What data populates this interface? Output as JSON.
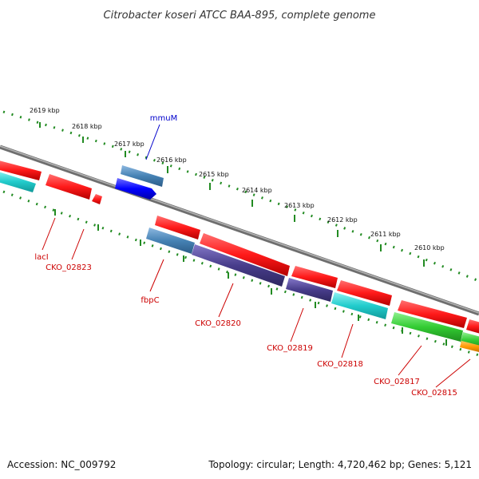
{
  "title": "Citrobacter koseri ATCC BAA-895, complete genome",
  "footer": {
    "accession": "Accession: NC_009792",
    "summary": "Topology: circular; Length: 4,720,462 bp; Genes: 5,121"
  },
  "scale_labels": [
    "2619 kbp",
    "2618 kbp",
    "2617 kbp",
    "2616 kbp",
    "2615 kbp",
    "2614 kbp",
    "2613 kbp",
    "2612 kbp",
    "2611 kbp",
    "2610 kbp"
  ],
  "gene_labels": {
    "mmuM": "mmuM",
    "lacI": "lacI",
    "CKO_02823": "CKO_02823",
    "fbpC": "fbpC",
    "CKO_02820": "CKO_02820",
    "CKO_02819": "CKO_02819",
    "CKO_02818": "CKO_02818",
    "CKO_02817": "CKO_02817",
    "CKO_02815": "CKO_02815"
  },
  "colors": {
    "backbone": "#8a8a8a",
    "ticks": "#228b22",
    "cds_red": "#ff1a1a",
    "cyan": "#22cccc",
    "steelblue": "#4682b4",
    "slateblue": "#483d8b",
    "blue": "#0000ff",
    "green": "#33cc33",
    "orange": "#ff9900",
    "label_red": "#cc0000",
    "label_blue": "#0000cc"
  }
}
